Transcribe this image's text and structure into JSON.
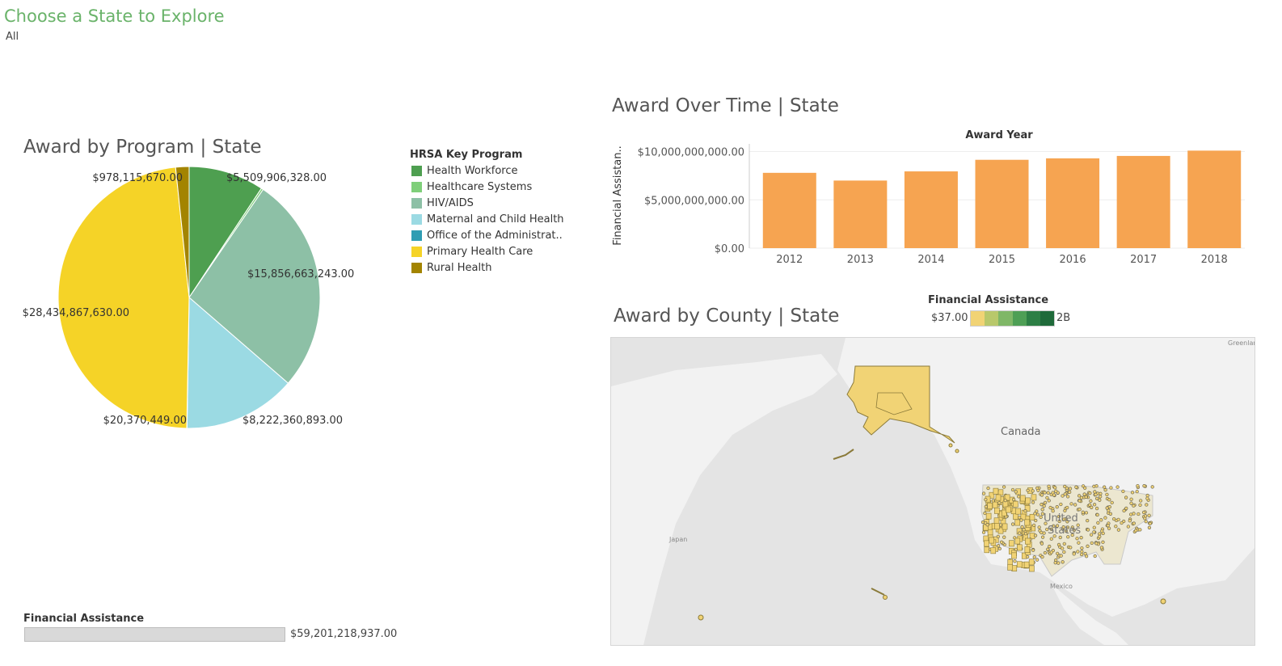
{
  "filter": {
    "title": "Choose a State to Explore",
    "value": "All"
  },
  "pie": {
    "title": "Award by Program | State",
    "legend_title": "HRSA Key Program",
    "slices": [
      {
        "name": "Health Workforce",
        "value": 5509906328.0,
        "label": "$5,509,906,328.00",
        "color": "#4e9f50"
      },
      {
        "name": "Healthcare Systems",
        "value": 150000000,
        "label": "",
        "color": "#7fcf7a"
      },
      {
        "name": "HIV/AIDS",
        "value": 15856663243.0,
        "label": "$15,856,663,243.00",
        "color": "#8dc0a6"
      },
      {
        "name": "Maternal and Child Health",
        "value": 8222360893.0,
        "label": "$8,222,360,893.00",
        "color": "#9bdae3"
      },
      {
        "name": "Office of the Administrat..",
        "value": 20370449.0,
        "label": "$20,370,449.00",
        "color": "#2f9db3"
      },
      {
        "name": "Primary Health Care",
        "value": 28434867630.0,
        "label": "$28,434,867,630.00",
        "color": "#f5d327"
      },
      {
        "name": "Rural Health",
        "value": 978115670.0,
        "label": "$978,115,670.00",
        "color": "#a38400"
      }
    ]
  },
  "financial_assistance": {
    "label": "Financial Assistance",
    "value": "$59,201,218,937.00"
  },
  "time": {
    "title": "Award Over Time | State",
    "axis_title": "Award Year",
    "y_title": "Financial Assistan..",
    "bar_color": "#f6a451"
  },
  "county": {
    "title": "Award by County | State",
    "legend_title": "Financial Assistance",
    "legend_min": "$37.00",
    "legend_max": "2B",
    "ramp": [
      "#f1d375",
      "#b8c86b",
      "#7fb767",
      "#4e9f55",
      "#2d7f45",
      "#1f6a3a"
    ],
    "labels": {
      "canada": "Canada",
      "us1": "United",
      "us2": "States",
      "mexico": "Mexico",
      "japan": "Japan",
      "greenland": "Greenlar"
    }
  },
  "chart_data": [
    {
      "type": "pie",
      "title": "Award by Program | State",
      "categories": [
        "Health Workforce",
        "Healthcare Systems",
        "HIV/AIDS",
        "Maternal and Child Health",
        "Office of the Administrat..",
        "Primary Health Care",
        "Rural Health"
      ],
      "values": [
        5509906328.0,
        150000000,
        15856663243.0,
        8222360893.0,
        20370449.0,
        28434867630.0,
        978115670.0
      ],
      "legend": "HRSA Key Program"
    },
    {
      "type": "bar",
      "title": "Award Over Time | State",
      "categories": [
        "2012",
        "2013",
        "2014",
        "2015",
        "2016",
        "2017",
        "2018"
      ],
      "values": [
        7800000000,
        7000000000,
        7950000000,
        9150000000,
        9300000000,
        9550000000,
        10100000000
      ],
      "xlabel": "Award Year",
      "ylabel": "Financial Assistan..",
      "yticks": [
        "$0.00",
        "$5,000,000,000.00",
        "$10,000,000,000.00"
      ],
      "ylim": [
        0,
        10800000000
      ]
    }
  ]
}
